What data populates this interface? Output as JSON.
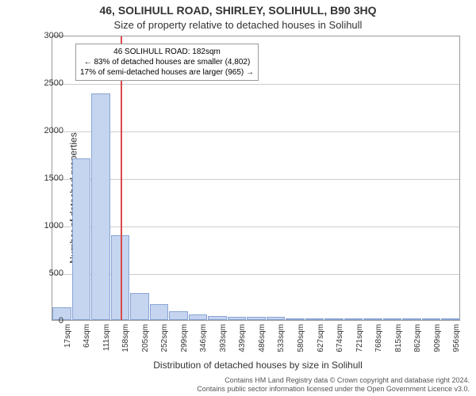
{
  "title_main": "46, SOLIHULL ROAD, SHIRLEY, SOLIHULL, B90 3HQ",
  "title_sub": "Size of property relative to detached houses in Solihull",
  "ylabel": "Number of detached properties",
  "xlabel": "Distribution of detached houses by size in Solihull",
  "chart": {
    "type": "histogram",
    "ylim": [
      0,
      3000
    ],
    "ytick_step": 500,
    "yticks": [
      0,
      500,
      1000,
      1500,
      2000,
      2500,
      3000
    ],
    "xticks": [
      "17sqm",
      "64sqm",
      "111sqm",
      "158sqm",
      "205sqm",
      "252sqm",
      "299sqm",
      "346sqm",
      "393sqm",
      "439sqm",
      "486sqm",
      "533sqm",
      "580sqm",
      "627sqm",
      "674sqm",
      "721sqm",
      "768sqm",
      "815sqm",
      "862sqm",
      "909sqm",
      "956sqm"
    ],
    "bar_values": [
      130,
      1700,
      2380,
      890,
      280,
      170,
      90,
      60,
      40,
      30,
      30,
      30,
      10,
      5,
      5,
      5,
      3,
      3,
      3,
      3,
      3
    ],
    "bar_color": "#c5d4ef",
    "bar_border": "#8aa5d4",
    "background_color": "#ffffff",
    "grid_color": "#cccccc",
    "border_color": "#999999",
    "marker_x_position": 3.5,
    "marker_color": "#d94a4a"
  },
  "annotation": {
    "line1": "46 SOLIHULL ROAD: 182sqm",
    "line2": "← 83% of detached houses are smaller (4,802)",
    "line3": "17% of semi-detached houses are larger (965) →"
  },
  "footer_line1": "Contains HM Land Registry data © Crown copyright and database right 2024.",
  "footer_line2": "Contains public sector information licensed under the Open Government Licence v3.0."
}
